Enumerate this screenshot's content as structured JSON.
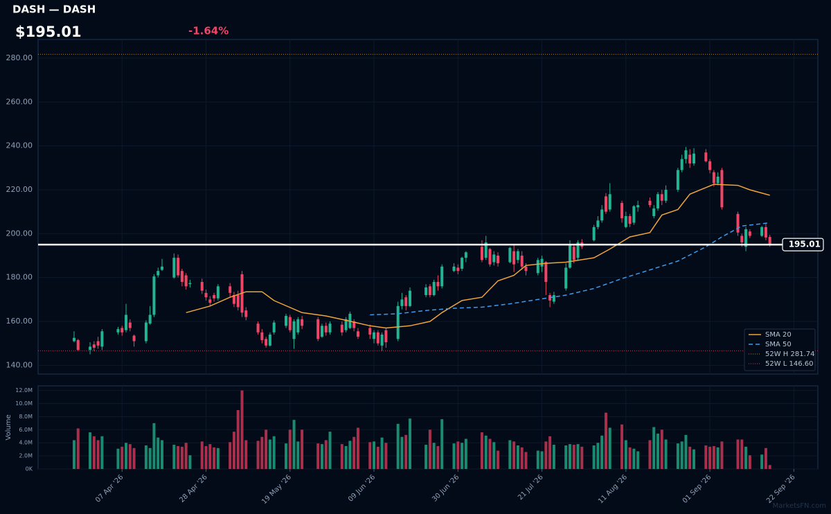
{
  "chart_data": {
    "type": "candlestick",
    "title": "DASH — DASH",
    "price_text": "$195.01",
    "change_text": "-1.64%",
    "last_price": 195.01,
    "watermark": "MarketsFN.com",
    "up_color": "#22b594",
    "down_color": "#ef4566",
    "volume_up_color": "#1a8a70",
    "volume_down_color": "#a8304c",
    "x": [
      "2026-03-26",
      "2026-03-27",
      "2026-03-30",
      "2026-03-31",
      "2026-04-01",
      "2026-04-02",
      "2026-04-06",
      "2026-04-07",
      "2026-04-08",
      "2026-04-09",
      "2026-04-10",
      "2026-04-13",
      "2026-04-14",
      "2026-04-15",
      "2026-04-16",
      "2026-04-17",
      "2026-04-20",
      "2026-04-21",
      "2026-04-22",
      "2026-04-23",
      "2026-04-24",
      "2026-04-27",
      "2026-04-28",
      "2026-04-29",
      "2026-04-30",
      "2026-05-01",
      "2026-05-04",
      "2026-05-05",
      "2026-05-06",
      "2026-05-07",
      "2026-05-08",
      "2026-05-11",
      "2026-05-12",
      "2026-05-13",
      "2026-05-14",
      "2026-05-15",
      "2026-05-18",
      "2026-05-19",
      "2026-05-20",
      "2026-05-21",
      "2026-05-22",
      "2026-05-26",
      "2026-05-27",
      "2026-05-28",
      "2026-05-29",
      "2026-06-01",
      "2026-06-02",
      "2026-06-03",
      "2026-06-04",
      "2026-06-05",
      "2026-06-08",
      "2026-06-09",
      "2026-06-10",
      "2026-06-11",
      "2026-06-12",
      "2026-06-15",
      "2026-06-16",
      "2026-06-17",
      "2026-06-18",
      "2026-06-22",
      "2026-06-23",
      "2026-06-24",
      "2026-06-25",
      "2026-06-26",
      "2026-06-29",
      "2026-06-30",
      "2026-07-01",
      "2026-07-02",
      "2026-07-06",
      "2026-07-07",
      "2026-07-08",
      "2026-07-09",
      "2026-07-10",
      "2026-07-13",
      "2026-07-14",
      "2026-07-15",
      "2026-07-16",
      "2026-07-17",
      "2026-07-20",
      "2026-07-21",
      "2026-07-22",
      "2026-07-23",
      "2026-07-24",
      "2026-07-27",
      "2026-07-28",
      "2026-07-29",
      "2026-07-30",
      "2026-07-31",
      "2026-08-03",
      "2026-08-04",
      "2026-08-05",
      "2026-08-06",
      "2026-08-07",
      "2026-08-10",
      "2026-08-11",
      "2026-08-12",
      "2026-08-13",
      "2026-08-14",
      "2026-08-17",
      "2026-08-18",
      "2026-08-19",
      "2026-08-20",
      "2026-08-21",
      "2026-08-24",
      "2026-08-25",
      "2026-08-26",
      "2026-08-27",
      "2026-08-28",
      "2026-08-31",
      "2026-09-01",
      "2026-09-02",
      "2026-09-03",
      "2026-09-04",
      "2026-09-08",
      "2026-09-09",
      "2026-09-10",
      "2026-09-11",
      "2026-09-14",
      "2026-09-15",
      "2026-09-16"
    ],
    "open": [
      151,
      151.5,
      147,
      149.5,
      151,
      148.5,
      155,
      157,
      156,
      159.5,
      153.5,
      151,
      159,
      163,
      181,
      183.5,
      180,
      189,
      183,
      181,
      177,
      178,
      173,
      170,
      172,
      170.5,
      176,
      172,
      172,
      181.5,
      165,
      159,
      155,
      152,
      149,
      155,
      158,
      162,
      152,
      155,
      161,
      161,
      153,
      158,
      155,
      158.5,
      156,
      157,
      160,
      155.5,
      157,
      152,
      155,
      149,
      156,
      152,
      167,
      171,
      167,
      172,
      176,
      172,
      178,
      176,
      183,
      184.5,
      184,
      189,
      194,
      189,
      193,
      187,
      190,
      187,
      192,
      188,
      190,
      185,
      182,
      185,
      187,
      172,
      169,
      175,
      184.5,
      194,
      189,
      196,
      197,
      203,
      206,
      217,
      211,
      214,
      203,
      208,
      205,
      212,
      215,
      208,
      211.5,
      218,
      215,
      220,
      229,
      234,
      236,
      232,
      237,
      233,
      228,
      223,
      229,
      209,
      199,
      194,
      201,
      199,
      203,
      198.5
    ],
    "high": [
      155.5,
      152,
      150.5,
      151,
      153,
      156.5,
      157.5,
      158,
      168,
      161,
      154,
      160.5,
      167,
      181.5,
      184.5,
      188.5,
      191,
      190.5,
      184,
      182,
      179,
      179.5,
      174.5,
      171.5,
      173,
      177,
      177.5,
      173.5,
      174,
      183,
      166.5,
      160,
      156.5,
      153,
      155,
      160.5,
      163.5,
      163,
      161,
      162,
      162.5,
      162,
      159,
      159.5,
      160,
      160,
      162,
      164.5,
      161,
      157,
      158.5,
      156,
      156,
      155,
      157,
      169,
      173,
      172,
      175.5,
      177,
      177,
      179,
      181,
      186,
      186.5,
      186,
      189.5,
      192,
      197,
      199,
      193.5,
      192,
      191.5,
      194,
      195,
      193,
      192,
      186.5,
      189,
      190,
      187.5,
      173,
      173.5,
      186.5,
      197,
      195,
      197,
      197.5,
      204,
      208,
      213,
      218.5,
      223,
      215,
      210,
      209,
      213,
      215,
      216.5,
      213,
      219,
      220,
      222,
      230,
      236,
      239.5,
      238.5,
      239,
      238.5,
      234,
      229,
      228,
      230,
      210,
      200,
      203,
      202,
      203.5,
      205,
      199.5
    ],
    "low": [
      150.5,
      146.6,
      145,
      146.5,
      147.5,
      147,
      154,
      153.5,
      155,
      155.5,
      148.5,
      150,
      158.5,
      162,
      180,
      183,
      179.5,
      180,
      176,
      174.5,
      175.5,
      172.5,
      169.5,
      167,
      169,
      169.5,
      171,
      166.5,
      165,
      162,
      160.5,
      154,
      150,
      148,
      148.5,
      154,
      157,
      155,
      147.5,
      154,
      156.5,
      151,
      152.5,
      153.5,
      154,
      153.5,
      155,
      156.5,
      155.5,
      152,
      152,
      150,
      149,
      146.6,
      148,
      151,
      165.5,
      165,
      166.5,
      171,
      171,
      171.5,
      174,
      175,
      182.5,
      181.5,
      183,
      187,
      187,
      188,
      185,
      185.5,
      185,
      186.5,
      182.5,
      186.5,
      183.5,
      181,
      181,
      182.5,
      172,
      166.5,
      168,
      174,
      184,
      186.5,
      188,
      193,
      196.5,
      202,
      205,
      209,
      210,
      205,
      202.5,
      203,
      204,
      210,
      212,
      207,
      210.5,
      213,
      214,
      219,
      228,
      232,
      230,
      231,
      232.5,
      227.5,
      221.5,
      222,
      211,
      199,
      194,
      192,
      198,
      198.5,
      197,
      194
    ],
    "close": [
      152.5,
      147,
      148.5,
      148,
      149,
      155.5,
      156.5,
      155,
      163,
      157,
      151,
      159.5,
      163,
      180.5,
      183,
      185,
      189,
      181,
      178,
      176,
      177.5,
      174,
      171,
      168.5,
      170.5,
      176,
      173,
      168,
      166.5,
      164,
      162,
      155,
      151.5,
      149,
      154,
      159.5,
      162.5,
      156,
      160,
      161,
      158,
      152,
      158,
      155,
      159,
      155,
      161,
      163.5,
      157,
      153,
      154,
      155,
      150,
      154,
      150.5,
      167,
      170,
      167,
      174,
      175.5,
      172,
      178,
      176,
      185,
      185,
      183,
      189,
      191.5,
      188,
      196,
      186,
      190.5,
      186.5,
      193.5,
      186,
      192,
      185,
      183,
      188,
      188.5,
      178,
      169.5,
      172,
      184.5,
      195,
      188,
      196,
      194,
      203,
      206,
      211,
      210,
      218,
      207,
      208,
      204.5,
      212.5,
      213,
      213,
      211.5,
      218,
      215,
      220,
      229,
      234,
      238,
      232,
      236.5,
      233,
      229,
      223,
      226,
      212,
      200.5,
      196,
      202,
      199,
      203,
      198.26,
      195.01
    ],
    "volume": [
      4.4,
      6.2,
      5.6,
      5,
      4.4,
      5,
      3.1,
      3.4,
      4,
      3.8,
      3.2,
      3.6,
      3.2,
      7,
      4.8,
      4.4,
      3.7,
      3.5,
      3.4,
      4,
      2.1,
      4.2,
      3.5,
      3.8,
      3.3,
      3.2,
      4.1,
      5.7,
      9,
      12,
      4.4,
      4.3,
      4.9,
      6,
      4.5,
      5,
      3.9,
      6,
      7.5,
      4.2,
      6,
      3.9,
      3.8,
      4.4,
      5.7,
      3.8,
      3.5,
      4.3,
      4.9,
      6.3,
      4.1,
      4.2,
      3.4,
      4.8,
      4,
      6.9,
      4.9,
      5.2,
      7.7,
      3.7,
      6,
      4,
      3.5,
      7.6,
      3.9,
      4.2,
      4,
      4.6,
      5.6,
      5.1,
      4.6,
      4.1,
      2.8,
      4.4,
      4.2,
      3.6,
      3.3,
      2.6,
      2.8,
      2.7,
      4.2,
      5,
      3.7,
      3.6,
      3.8,
      3.7,
      3.8,
      3.4,
      3.6,
      4,
      5.1,
      8.6,
      6.3,
      6.8,
      4.4,
      3.3,
      3.1,
      2.7,
      4.4,
      6.4,
      5.4,
      6,
      4.5,
      3.9,
      4.2,
      5.2,
      3.4,
      3,
      3.6,
      3.4,
      3.5,
      3.3,
      4.2,
      4.5,
      4.5,
      3.4,
      2.1,
      2.2,
      3.2,
      0.6
    ],
    "series": [
      {
        "name": "SMA 20",
        "color": "#f0a43a",
        "dash": "none",
        "x": [
          "2026-04-23",
          "2026-04-29",
          "2026-05-04",
          "2026-05-08",
          "2026-05-12",
          "2026-05-15",
          "2026-05-22",
          "2026-05-28",
          "2026-06-02",
          "2026-06-08",
          "2026-06-12",
          "2026-06-18",
          "2026-06-23",
          "2026-06-26",
          "2026-07-01",
          "2026-07-06",
          "2026-07-10",
          "2026-07-14",
          "2026-07-17",
          "2026-07-22",
          "2026-07-27",
          "2026-08-03",
          "2026-08-07",
          "2026-08-12",
          "2026-08-17",
          "2026-08-20",
          "2026-08-24",
          "2026-08-27",
          "2026-08-31",
          "2026-09-02",
          "2026-09-08",
          "2026-09-11",
          "2026-09-16"
        ],
        "values": [
          164,
          167,
          171,
          173.5,
          173.5,
          169.5,
          164,
          162.5,
          160.5,
          158,
          157,
          158,
          160,
          164,
          169.5,
          171,
          178.5,
          181,
          185.5,
          186.5,
          187,
          189,
          193,
          198.5,
          200.5,
          208.5,
          211,
          218,
          221,
          222.5,
          222,
          220,
          217.5
        ]
      },
      {
        "name": "SMA 50",
        "color": "#3b9cf0",
        "dash": "6 4",
        "x": [
          "2026-06-08",
          "2026-06-15",
          "2026-06-22",
          "2026-06-29",
          "2026-07-06",
          "2026-07-13",
          "2026-07-20",
          "2026-07-27",
          "2026-08-03",
          "2026-08-10",
          "2026-08-17",
          "2026-08-24",
          "2026-08-31",
          "2026-09-04",
          "2026-09-09",
          "2026-09-14",
          "2026-09-16"
        ],
        "values": [
          163,
          163.5,
          165,
          166,
          166.5,
          168,
          170,
          172,
          175,
          179.5,
          183.5,
          187.5,
          194,
          198.5,
          203.5,
          204.5,
          205
        ]
      }
    ],
    "hlines": [
      {
        "name": "52W H 281.74",
        "value": 281.74,
        "color": "#b5842c"
      },
      {
        "name": "52W L 146.60",
        "value": 146.6,
        "color": "#c0405a"
      }
    ],
    "xlim": [
      "2026-03-17",
      "2026-09-28"
    ],
    "xticks": [
      {
        "value": "2026-04-07",
        "label": "07 Apr '26"
      },
      {
        "value": "2026-04-28",
        "label": "28 Apr '26"
      },
      {
        "value": "2026-05-19",
        "label": "19 May '26"
      },
      {
        "value": "2026-06-09",
        "label": "09 Jun '26"
      },
      {
        "value": "2026-06-30",
        "label": "30 Jun '26"
      },
      {
        "value": "2026-07-21",
        "label": "21 Jul '26"
      },
      {
        "value": "2026-08-11",
        "label": "11 Aug '26"
      },
      {
        "value": "2026-09-01",
        "label": "01 Sep '26"
      },
      {
        "value": "2026-09-22",
        "label": "22 Sep '26"
      }
    ],
    "ylim": [
      136,
      288.5
    ],
    "yticks": [
      {
        "value": 140,
        "label": "140.00"
      },
      {
        "value": 160,
        "label": "160.00"
      },
      {
        "value": 180,
        "label": "180.00"
      },
      {
        "value": 200,
        "label": "200.00"
      },
      {
        "value": 220,
        "label": "220.00"
      },
      {
        "value": 240,
        "label": "240.00"
      },
      {
        "value": 260,
        "label": "260.00"
      },
      {
        "value": 280,
        "label": "280.00"
      }
    ],
    "volume_axis": {
      "label": "Volume",
      "ylim": [
        0,
        12.7
      ],
      "yticks": [
        {
          "value": 0,
          "label": "0K"
        },
        {
          "value": 2,
          "label": "2.0M"
        },
        {
          "value": 4,
          "label": "4.0M"
        },
        {
          "value": 6,
          "label": "6.0M"
        },
        {
          "value": 8,
          "label": "8.0M"
        },
        {
          "value": 10,
          "label": "10.0M"
        },
        {
          "value": 12,
          "label": "12.0M"
        }
      ]
    },
    "grid": true
  }
}
